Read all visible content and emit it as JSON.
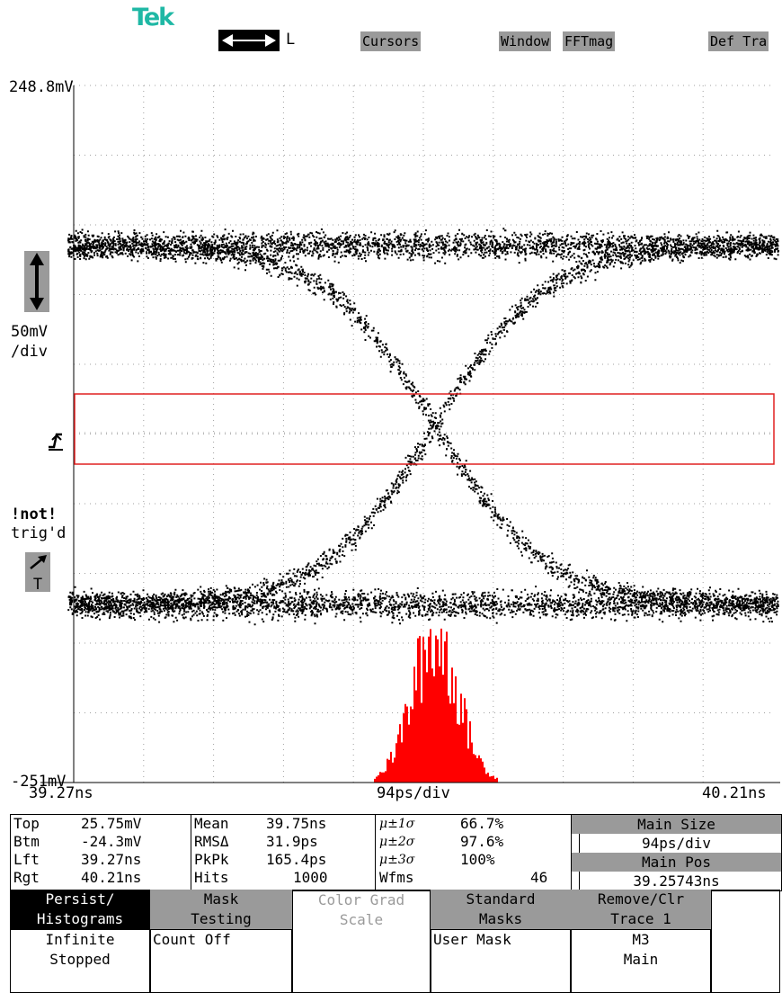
{
  "brand": "Tek",
  "toolbar": {
    "mode_letter": "L",
    "cursors": "Cursors",
    "window": "Window",
    "fftmag": "FFTmag",
    "deftra": "Def Tra"
  },
  "screen": {
    "top_voltage": "248.8mV",
    "bottom_voltage": "-251mV",
    "scale_value": "50mV",
    "scale_unit": "/div",
    "trigger_status_1": "!not!",
    "trigger_status_2": "trig'd",
    "trigger_button_letter": "T",
    "time_left": "39.27ns",
    "time_div": "94ps/div",
    "time_right": "40.21ns"
  },
  "stats": {
    "rows": [
      {
        "name": "Top",
        "value": "25.75mV",
        "hname": "Mean",
        "hval": "39.75ns",
        "sigma": "μ±1σ",
        "pct": "66.7%"
      },
      {
        "name": "Btm",
        "value": "-24.3mV",
        "hname": "RMSΔ",
        "hval": "31.9ps",
        "sigma": "μ±2σ",
        "pct": "97.6%"
      },
      {
        "name": "Lft",
        "value": "39.27ns",
        "hname": "PkPk",
        "hval": "165.4ps",
        "sigma": "μ±3σ",
        "pct": "100%"
      },
      {
        "name": "Rgt",
        "value": "40.21ns",
        "hname": "Hits",
        "hval": "1000",
        "sigma": "Wfms",
        "pct": "46"
      }
    ]
  },
  "right_panel": {
    "main_size_label": "Main Size",
    "main_size_value": "94ps/div",
    "main_pos_label": "Main Pos",
    "main_pos_value": "39.25743ns"
  },
  "menu": {
    "persist_1": "Persist/",
    "persist_2": "Histograms",
    "persist_3": "Infinite",
    "persist_4": "Stopped",
    "mask_1": "Mask",
    "mask_2": "Testing",
    "mask_3": "Count Off",
    "color_1": "Color Grad",
    "color_2": "Scale",
    "std_1": "Standard",
    "std_2": "Masks",
    "std_3": "User Mask",
    "remove_1": "Remove/Clr",
    "remove_2": "Trace 1",
    "remove_3": "M3",
    "remove_4": "Main"
  },
  "colors": {
    "brand": "#1fb8a5",
    "histogram": "#ff0000",
    "mask_box": "#e02020",
    "button_gray": "#9a9a9a"
  }
}
